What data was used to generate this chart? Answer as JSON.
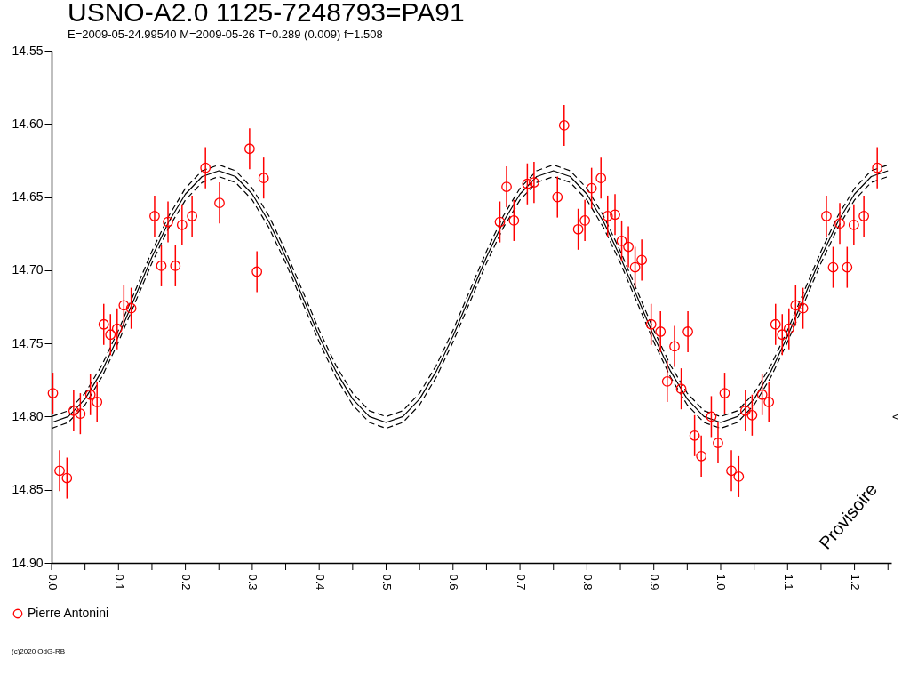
{
  "chart_data": {
    "type": "scatter",
    "title": "USNO-A2.0 1125-7248793=PA91",
    "subtitle": "E=2009-05-24.99540    M=2009-05-26    T=0.289 (0.009)    f=1.508",
    "annotations": [
      "Provisoire",
      "(c)2020 OdG-RB",
      "<"
    ],
    "xlim": [
      0,
      1.255
    ],
    "ylim": [
      14.9,
      14.55
    ],
    "xticks": [
      {
        "value": 0,
        "label": "0.0"
      },
      {
        "value": 0.05,
        "label": null
      },
      0.1,
      {
        "value": 0.15,
        "label": null
      },
      0.2,
      {
        "value": 0.25,
        "label": null
      },
      0.3,
      {
        "value": 0.35,
        "label": null
      },
      0.4,
      {
        "value": 0.45,
        "label": null
      },
      0.5,
      {
        "value": 0.55,
        "label": null
      },
      0.6,
      {
        "value": 0.65,
        "label": null
      },
      0.7,
      {
        "value": 0.75,
        "label": null
      },
      0.8,
      {
        "value": 0.85,
        "label": null
      },
      0.9,
      {
        "value": 0.95,
        "label": null
      },
      {
        "value": 1,
        "label": "1.0"
      },
      {
        "value": 1.05,
        "label": null
      },
      1.1,
      {
        "value": 1.15,
        "label": null
      },
      1.2,
      {
        "value": 1.25,
        "label": null
      }
    ],
    "yticks": [
      14.55,
      {
        "value": 14.6,
        "label": "14.60"
      },
      14.65,
      {
        "value": 14.7,
        "label": "14.70"
      },
      14.75,
      {
        "value": 14.8,
        "label": "14.80"
      },
      14.85,
      {
        "value": 14.9,
        "label": "14.90"
      }
    ],
    "grid": false,
    "legend": "bottom",
    "series": [
      {
        "type": "line",
        "color": "#000000",
        "line_style": "solid",
        "x": [
          0,
          0.025,
          0.05,
          0.075,
          0.1,
          0.125,
          0.15,
          0.175,
          0.2,
          0.225,
          0.25,
          0.275,
          0.3,
          0.325,
          0.35,
          0.375,
          0.4,
          0.425,
          0.45,
          0.475,
          0.5,
          0.525,
          0.55,
          0.575,
          0.6,
          0.625,
          0.65,
          0.675,
          0.7,
          0.725,
          0.75,
          0.775,
          0.8,
          0.825,
          0.85,
          0.875,
          0.9,
          0.925,
          0.95,
          0.975,
          1,
          1.025,
          1.05,
          1.075,
          1.1,
          1.125,
          1.15,
          1.175,
          1.2,
          1.225,
          1.25
        ],
        "values": [
          14.804,
          14.8,
          14.788,
          14.769,
          14.745,
          14.718,
          14.691,
          14.667,
          14.648,
          14.636,
          14.632,
          14.636,
          14.648,
          14.667,
          14.691,
          14.718,
          14.745,
          14.769,
          14.788,
          14.8,
          14.804,
          14.8,
          14.788,
          14.769,
          14.745,
          14.718,
          14.691,
          14.667,
          14.648,
          14.636,
          14.632,
          14.636,
          14.648,
          14.667,
          14.691,
          14.718,
          14.745,
          14.769,
          14.788,
          14.8,
          14.804,
          14.8,
          14.788,
          14.769,
          14.745,
          14.718,
          14.691,
          14.667,
          14.648,
          14.636,
          14.632
        ]
      },
      {
        "type": "line",
        "color": "#000000",
        "line_style": "dashed",
        "x": [
          0,
          0.025,
          0.05,
          0.075,
          0.1,
          0.125,
          0.15,
          0.175,
          0.2,
          0.225,
          0.25,
          0.275,
          0.3,
          0.325,
          0.35,
          0.375,
          0.4,
          0.425,
          0.45,
          0.475,
          0.5,
          0.525,
          0.55,
          0.575,
          0.6,
          0.625,
          0.65,
          0.675,
          0.7,
          0.725,
          0.75,
          0.775,
          0.8,
          0.825,
          0.85,
          0.875,
          0.9,
          0.925,
          0.95,
          0.975,
          1,
          1.025,
          1.05,
          1.075,
          1.1,
          1.125,
          1.15,
          1.175,
          1.2,
          1.225,
          1.25
        ],
        "values": [
          14.8,
          14.796,
          14.784,
          14.765,
          14.741,
          14.714,
          14.687,
          14.663,
          14.644,
          14.632,
          14.628,
          14.632,
          14.644,
          14.663,
          14.687,
          14.714,
          14.741,
          14.765,
          14.784,
          14.796,
          14.8,
          14.796,
          14.784,
          14.765,
          14.741,
          14.714,
          14.687,
          14.663,
          14.644,
          14.632,
          14.628,
          14.632,
          14.644,
          14.663,
          14.687,
          14.714,
          14.741,
          14.765,
          14.784,
          14.796,
          14.8,
          14.796,
          14.784,
          14.765,
          14.741,
          14.714,
          14.687,
          14.663,
          14.644,
          14.632,
          14.628
        ]
      },
      {
        "type": "line",
        "color": "#000000",
        "line_style": "dashed",
        "x": [
          0,
          0.025,
          0.05,
          0.075,
          0.1,
          0.125,
          0.15,
          0.175,
          0.2,
          0.225,
          0.25,
          0.275,
          0.3,
          0.325,
          0.35,
          0.375,
          0.4,
          0.425,
          0.45,
          0.475,
          0.5,
          0.525,
          0.55,
          0.575,
          0.6,
          0.625,
          0.65,
          0.675,
          0.7,
          0.725,
          0.75,
          0.775,
          0.8,
          0.825,
          0.85,
          0.875,
          0.9,
          0.925,
          0.95,
          0.975,
          1,
          1.025,
          1.05,
          1.075,
          1.1,
          1.125,
          1.15,
          1.175,
          1.2,
          1.225,
          1.25
        ],
        "values": [
          14.808,
          14.804,
          14.792,
          14.773,
          14.749,
          14.722,
          14.695,
          14.671,
          14.652,
          14.64,
          14.636,
          14.64,
          14.652,
          14.671,
          14.695,
          14.722,
          14.749,
          14.773,
          14.792,
          14.804,
          14.808,
          14.804,
          14.792,
          14.773,
          14.749,
          14.722,
          14.695,
          14.671,
          14.652,
          14.64,
          14.636,
          14.64,
          14.652,
          14.671,
          14.695,
          14.722,
          14.749,
          14.773,
          14.792,
          14.804,
          14.808,
          14.804,
          14.792,
          14.773,
          14.749,
          14.722,
          14.695,
          14.671,
          14.652,
          14.64,
          14.636
        ]
      },
      {
        "name": "Pierre Antonini",
        "color": "#ff0000",
        "marker": "circle",
        "x": [
          0.002,
          0.012,
          0.023,
          0.033,
          0.043,
          0.058,
          0.068,
          0.078,
          0.088,
          0.098,
          0.108,
          0.119,
          0.154,
          0.164,
          0.174,
          0.185,
          0.195,
          0.21,
          0.23,
          0.251,
          0.296,
          0.307,
          0.317,
          0.67,
          0.68,
          0.691,
          0.711,
          0.721,
          0.756,
          0.766,
          0.787,
          0.797,
          0.807,
          0.821,
          0.831,
          0.842,
          0.852,
          0.862,
          0.872,
          0.882,
          0.896,
          0.91,
          0.92,
          0.931,
          0.941,
          0.951,
          0.961,
          0.971,
          0.986,
          0.996,
          1.006,
          1.016,
          1.027,
          1.037,
          1.047,
          1.062,
          1.072,
          1.082,
          1.092,
          1.102,
          1.112,
          1.123,
          1.158,
          1.168,
          1.178,
          1.189,
          1.199,
          1.214,
          1.234
        ],
        "values": [
          14.784,
          14.837,
          14.842,
          14.796,
          14.798,
          14.785,
          14.79,
          14.737,
          14.744,
          14.74,
          14.724,
          14.726,
          14.663,
          14.697,
          14.667,
          14.697,
          14.669,
          14.663,
          14.63,
          14.654,
          14.617,
          14.701,
          14.637,
          14.667,
          14.643,
          14.666,
          14.641,
          14.64,
          14.65,
          14.601,
          14.672,
          14.666,
          14.644,
          14.637,
          14.663,
          14.662,
          14.68,
          14.684,
          14.698,
          14.693,
          14.737,
          14.742,
          14.776,
          14.752,
          14.781,
          14.742,
          14.813,
          14.827,
          14.8,
          14.818,
          14.784,
          14.837,
          14.841,
          14.796,
          14.799,
          14.785,
          14.79,
          14.737,
          14.744,
          14.74,
          14.724,
          14.726,
          14.663,
          14.698,
          14.668,
          14.698,
          14.669,
          14.663,
          14.63
        ],
        "errors": [
          0.014,
          0.014,
          0.014,
          0.014,
          0.014,
          0.014,
          0.014,
          0.014,
          0.014,
          0.014,
          0.014,
          0.014,
          0.014,
          0.014,
          0.014,
          0.014,
          0.014,
          0.014,
          0.014,
          0.014,
          0.014,
          0.014,
          0.014,
          0.014,
          0.014,
          0.014,
          0.014,
          0.014,
          0.014,
          0.014,
          0.014,
          0.014,
          0.014,
          0.014,
          0.014,
          0.014,
          0.014,
          0.014,
          0.014,
          0.014,
          0.014,
          0.014,
          0.014,
          0.014,
          0.014,
          0.014,
          0.014,
          0.014,
          0.014,
          0.014,
          0.014,
          0.014,
          0.014,
          0.014,
          0.014,
          0.014,
          0.014,
          0.014,
          0.014,
          0.014,
          0.014,
          0.014,
          0.014,
          0.014,
          0.014,
          0.014,
          0.014,
          0.014,
          0.014
        ]
      }
    ]
  }
}
